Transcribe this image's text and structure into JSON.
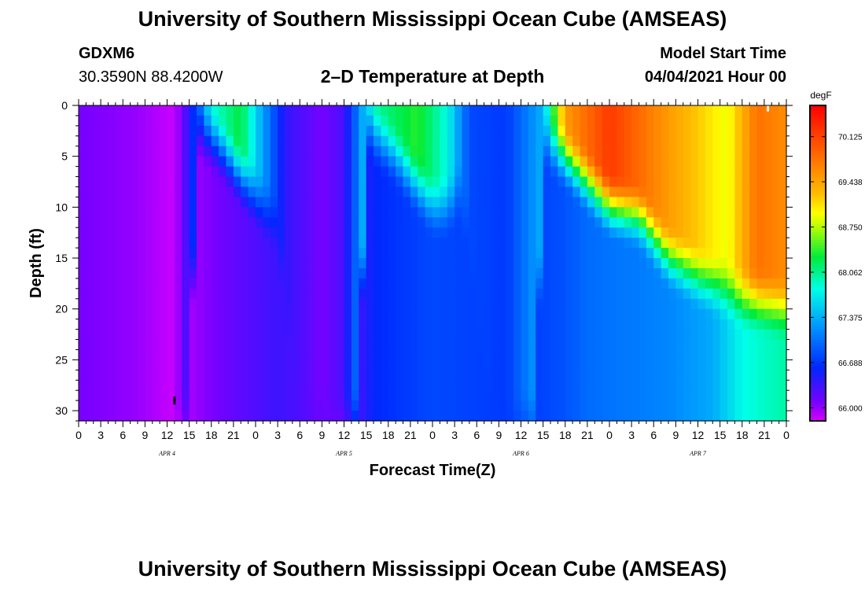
{
  "header": {
    "title": "University of Southern Mississippi Ocean Cube (AMSEAS)",
    "station_id": "GDXM6",
    "coords": "30.3590N  88.4200W",
    "plot_title": "2–D Temperature at Depth",
    "model_start_label": "Model Start Time",
    "model_start_value": "04/04/2021 Hour 00"
  },
  "footer": {
    "title": "University of Southern Mississippi Ocean Cube (AMSEAS)"
  },
  "chart_data": {
    "type": "heatmap",
    "title": "2–D Temperature at Depth",
    "xlabel": "Forecast Time(Z)",
    "ylabel": "Depth (ft)",
    "x_unit": "hours since 04/04/2021 00Z",
    "x_range": [
      0,
      96
    ],
    "y_range": [
      0,
      31
    ],
    "y_ticks": [
      0,
      5,
      10,
      15,
      20,
      25,
      30
    ],
    "x_tick_labels": [
      "0",
      "3",
      "6",
      "9",
      "12",
      "15",
      "18",
      "21",
      "0",
      "3",
      "6",
      "9",
      "12",
      "15",
      "18",
      "21",
      "0",
      "3",
      "6",
      "9",
      "12",
      "15",
      "18",
      "21",
      "0",
      "3",
      "6",
      "9",
      "12",
      "15",
      "18",
      "21",
      "0"
    ],
    "day_labels": [
      {
        "hour": 12,
        "label": "APR 4"
      },
      {
        "hour": 36,
        "label": "APR 5"
      },
      {
        "hour": 60,
        "label": "APR 6"
      },
      {
        "hour": 84,
        "label": "APR 7"
      }
    ],
    "colorbar": {
      "unit": "degF",
      "min": 65.8,
      "max": 70.6,
      "tick_values": [
        66.0,
        66.688,
        67.375,
        68.062,
        68.75,
        69.438,
        70.125
      ],
      "tick_labels": [
        "66.000",
        "66.688",
        "67.375",
        "68.062",
        "68.750",
        "69.438",
        "70.125"
      ]
    },
    "surface_temperature_degF": [
      {
        "hour": 0,
        "value": 66.1
      },
      {
        "hour": 8,
        "value": 66.0
      },
      {
        "hour": 13,
        "value": 65.85
      },
      {
        "hour": 15,
        "value": 66.4
      },
      {
        "hour": 18,
        "value": 67.8
      },
      {
        "hour": 22,
        "value": 68.3
      },
      {
        "hour": 24,
        "value": 67.6
      },
      {
        "hour": 28,
        "value": 66.4
      },
      {
        "hour": 33,
        "value": 66.1
      },
      {
        "hour": 36,
        "value": 66.3
      },
      {
        "hour": 40,
        "value": 68.0
      },
      {
        "hour": 46,
        "value": 68.4
      },
      {
        "hour": 50,
        "value": 67.8
      },
      {
        "hour": 53,
        "value": 66.8
      },
      {
        "hour": 58,
        "value": 66.7
      },
      {
        "hour": 63,
        "value": 67.4
      },
      {
        "hour": 66,
        "value": 69.5
      },
      {
        "hour": 72,
        "value": 70.2
      },
      {
        "hour": 80,
        "value": 69.5
      },
      {
        "hour": 88,
        "value": 68.9
      },
      {
        "hour": 92,
        "value": 69.8
      },
      {
        "hour": 96,
        "value": 69.6
      }
    ],
    "bottom_temperature_degF": [
      {
        "hour": 0,
        "value": 66.1
      },
      {
        "hour": 8,
        "value": 66.0
      },
      {
        "hour": 13,
        "value": 65.85
      },
      {
        "hour": 16,
        "value": 66.0
      },
      {
        "hour": 20,
        "value": 66.15
      },
      {
        "hour": 27,
        "value": 66.35
      },
      {
        "hour": 33,
        "value": 66.2
      },
      {
        "hour": 36,
        "value": 66.05
      },
      {
        "hour": 40,
        "value": 66.6
      },
      {
        "hour": 48,
        "value": 66.8
      },
      {
        "hour": 60,
        "value": 66.7
      },
      {
        "hour": 66,
        "value": 66.85
      },
      {
        "hour": 69,
        "value": 67.0
      },
      {
        "hour": 80,
        "value": 67.15
      },
      {
        "hour": 86,
        "value": 67.35
      },
      {
        "hour": 90,
        "value": 67.8
      },
      {
        "hour": 96,
        "value": 68.0
      }
    ],
    "mixed_layer_depth_ft": [
      {
        "hour": 0,
        "value": 31
      },
      {
        "hour": 15,
        "value": 31
      },
      {
        "hour": 16,
        "value": 2
      },
      {
        "hour": 19,
        "value": 4
      },
      {
        "hour": 22,
        "value": 7
      },
      {
        "hour": 25,
        "value": 10
      },
      {
        "hour": 27,
        "value": 12
      },
      {
        "hour": 30,
        "value": 31
      },
      {
        "hour": 38,
        "value": 31
      },
      {
        "hour": 39,
        "value": 2
      },
      {
        "hour": 43,
        "value": 5
      },
      {
        "hour": 46,
        "value": 8
      },
      {
        "hour": 48,
        "value": 10
      },
      {
        "hour": 50,
        "value": 10
      },
      {
        "hour": 52,
        "value": 8
      },
      {
        "hour": 56,
        "value": 31
      },
      {
        "hour": 62,
        "value": 31
      },
      {
        "hour": 63,
        "value": 3
      },
      {
        "hour": 67,
        "value": 6
      },
      {
        "hour": 72,
        "value": 10
      },
      {
        "hour": 76,
        "value": 11
      },
      {
        "hour": 80,
        "value": 15
      },
      {
        "hour": 84,
        "value": 17
      },
      {
        "hour": 90,
        "value": 19
      },
      {
        "hour": 96,
        "value": 20
      }
    ],
    "markers": [
      {
        "hour": 13,
        "depth": 29,
        "color": "#000000"
      },
      {
        "hour": 93.5,
        "depth": 0.2,
        "color": "#ffffff"
      }
    ]
  }
}
